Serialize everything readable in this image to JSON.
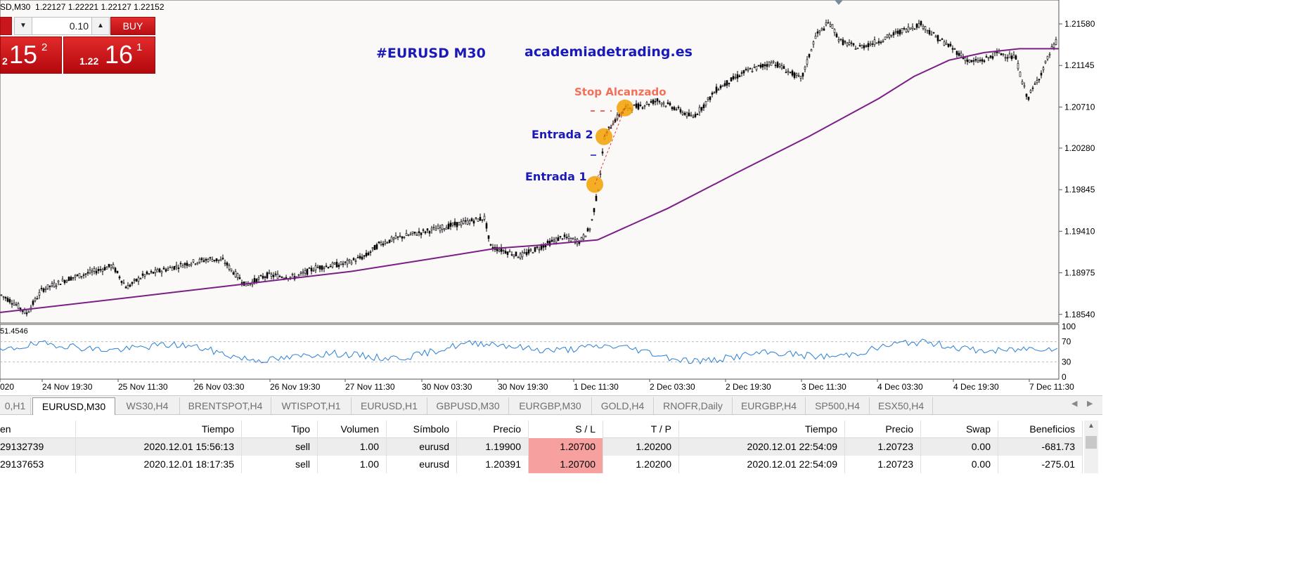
{
  "header": {
    "symbol_info": "SD,M30  1.22127 1.22221 1.22127 1.22152"
  },
  "trade_panel": {
    "volume": "0.10",
    "buy_label": "BUY",
    "bid": {
      "small": "2",
      "big": "15",
      "sup": "2"
    },
    "ask": {
      "small": "1.22",
      "big": "16",
      "sup": "1"
    }
  },
  "annotations": {
    "title": "#EURUSD M30",
    "site": "academiadetrading.es",
    "stop": "Stop Alcanzado",
    "entry2": "Entrada 2",
    "entry1": "Entrada 1"
  },
  "chart_data": {
    "type": "candlestick",
    "symbol": "EURUSD",
    "timeframe": "M30",
    "price_axis": [
      "1.21580",
      "1.21145",
      "1.20710",
      "1.20280",
      "1.19845",
      "1.19410",
      "1.18975",
      "1.18540"
    ],
    "time_axis": [
      "020",
      "24 Nov 19:30",
      "25 Nov 11:30",
      "26 Nov 03:30",
      "26 Nov 19:30",
      "27 Nov 11:30",
      "30 Nov 03:30",
      "30 Nov 19:30",
      "1 Dec 11:30",
      "2 Dec 03:30",
      "2 Dec 19:30",
      "3 Dec 11:30",
      "4 Dec 03:30",
      "4 Dec 19:30",
      "7 Dec 11:30"
    ],
    "ylim": [
      1.1845,
      1.2183
    ],
    "moving_average_color": "#7b1f86",
    "candle_color": "#000000",
    "markers": [
      {
        "label": "Entrada 1",
        "price": 1.199
      },
      {
        "label": "Entrada 2",
        "price": 1.204
      },
      {
        "label": "Stop Alcanzado",
        "price": 1.207
      }
    ],
    "rsi": {
      "value_label": "51.4546",
      "levels": [
        "100",
        "70",
        "30",
        "0"
      ],
      "color": "#2a7fd4"
    },
    "marker_color": "#f2a100",
    "annotation_color": "#1a1ab8",
    "stop_color": "#f2705a"
  },
  "tabs": [
    "0,H1",
    "EURUSD,M30",
    "WS30,H4",
    "BRENTSPOT,H4",
    "WTISPOT,H1",
    "EURUSD,H1",
    "GBPUSD,M30",
    "EURGBP,M30",
    "GOLD,H4",
    "RNOFR,Daily",
    "EURGBP,H4",
    "SP500,H4",
    "ESX50,H4"
  ],
  "active_tab": "EURUSD,M30",
  "trades": {
    "headers": [
      "en",
      "Tiempo",
      "Tipo",
      "Volumen",
      "Símbolo",
      "Precio",
      "S / L",
      "T / P",
      "Tiempo",
      "Precio",
      "Swap",
      "Beneficios"
    ],
    "rows": [
      [
        "29132739",
        "2020.12.01 15:56:13",
        "sell",
        "1.00",
        "eurusd",
        "1.19900",
        "1.20700",
        "1.20200",
        "2020.12.01 22:54:09",
        "1.20723",
        "0.00",
        "-681.73"
      ],
      [
        "29137653",
        "2020.12.01 18:17:35",
        "sell",
        "1.00",
        "eurusd",
        "1.20391",
        "1.20700",
        "1.20200",
        "2020.12.01 22:54:09",
        "1.20723",
        "0.00",
        "-275.01"
      ]
    ]
  }
}
